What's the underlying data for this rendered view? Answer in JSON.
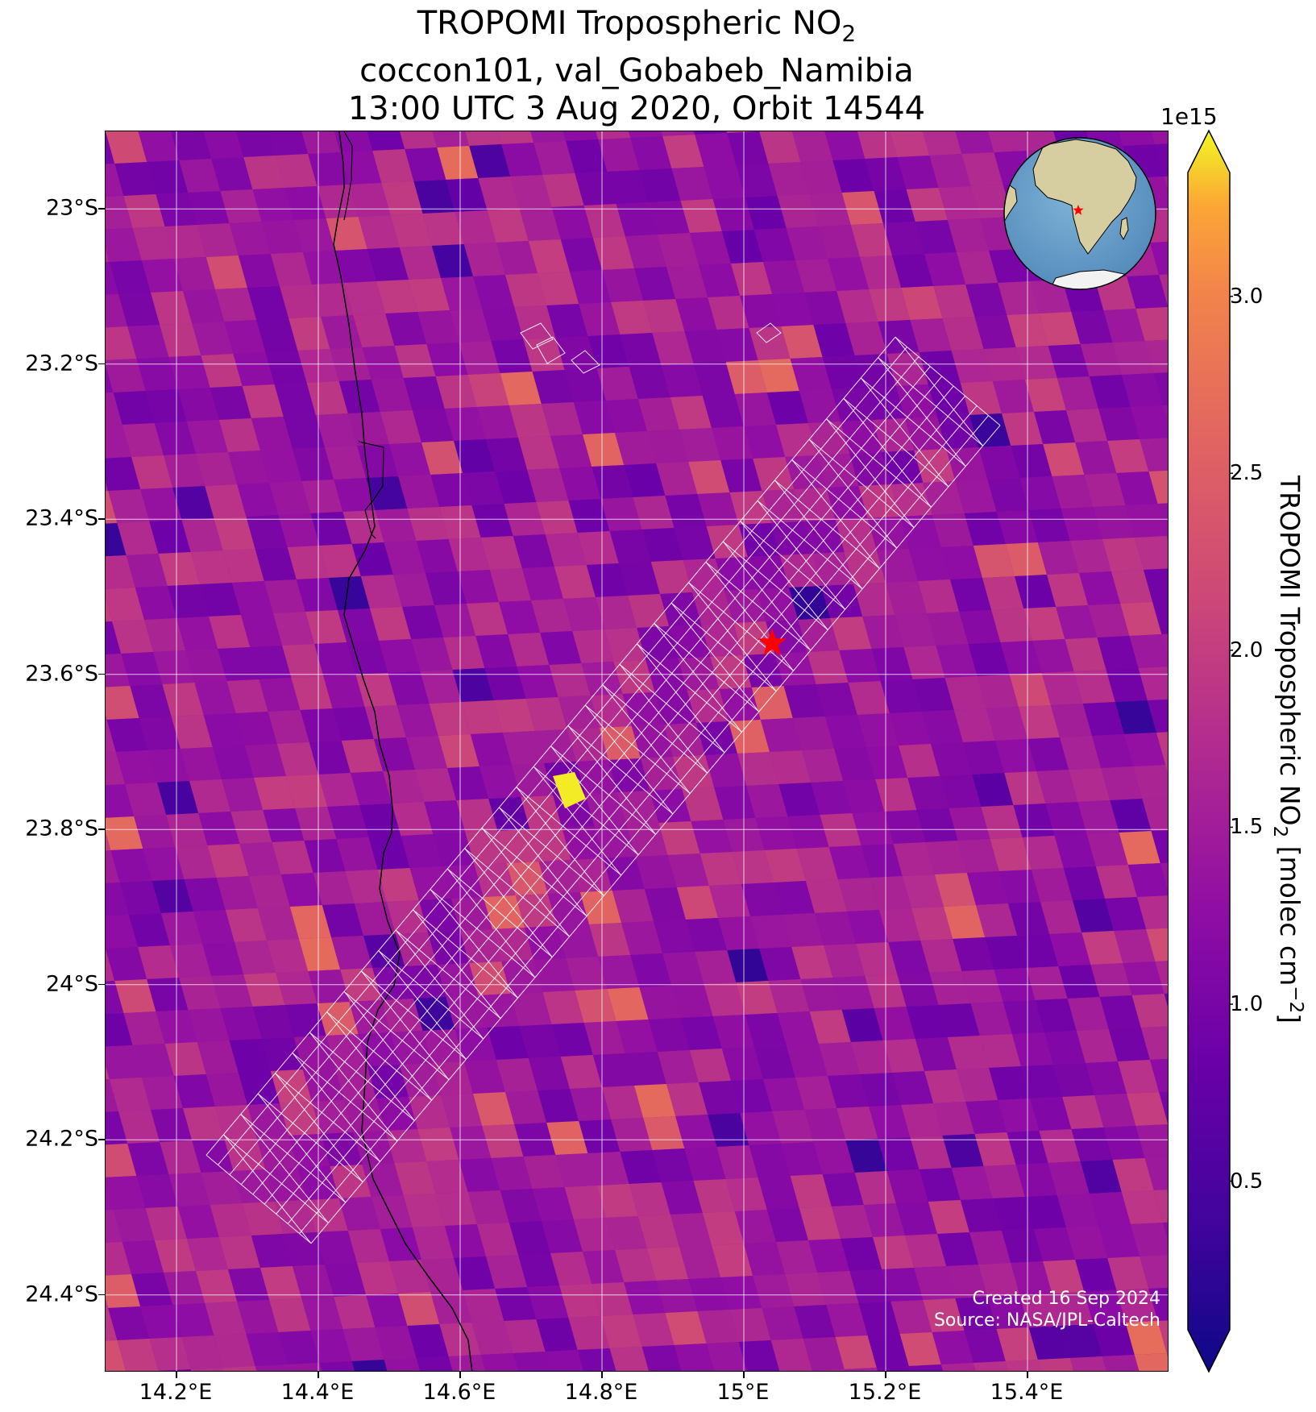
{
  "title": {
    "line1_prefix": "TROPOMI Tropospheric NO",
    "line1_sub": "2",
    "line2": "coccon101, val_Gobabeb_Namibia",
    "line3": "13:00 UTC 3 Aug 2020, Orbit 14544"
  },
  "map": {
    "lon_range": [
      14.1,
      15.6
    ],
    "lat_range": [
      -24.5,
      -22.9
    ],
    "x_ticks": [
      {
        "value": 14.2,
        "label": "14.2°E"
      },
      {
        "value": 14.4,
        "label": "14.4°E"
      },
      {
        "value": 14.6,
        "label": "14.6°E"
      },
      {
        "value": 14.8,
        "label": "14.8°E"
      },
      {
        "value": 15.0,
        "label": "15°E"
      },
      {
        "value": 15.2,
        "label": "15.2°E"
      },
      {
        "value": 15.4,
        "label": "15.4°E"
      }
    ],
    "y_ticks": [
      {
        "value": -23.0,
        "label": "23°S"
      },
      {
        "value": -23.2,
        "label": "23.2°S"
      },
      {
        "value": -23.4,
        "label": "23.4°S"
      },
      {
        "value": -23.6,
        "label": "23.6°S"
      },
      {
        "value": -23.8,
        "label": "23.8°S"
      },
      {
        "value": -24.0,
        "label": "24°S"
      },
      {
        "value": -24.2,
        "label": "24.2°S"
      },
      {
        "value": -24.4,
        "label": "24.4°S"
      }
    ],
    "site_marker": {
      "lon": 15.04,
      "lat": -23.56,
      "color": "#ff0000"
    },
    "grid_on": true,
    "colormap": "plasma"
  },
  "colorbar": {
    "exponent_label": "1e15",
    "label_prefix": "TROPOMI Tropospheric NO",
    "label_sub": "2",
    "label_middle": " [molec cm",
    "label_sup": "−2",
    "label_suffix": "]",
    "range": [
      0.08,
      3.35
    ],
    "extend": "both",
    "ticks": [
      {
        "value": 0.5,
        "label": "0.5"
      },
      {
        "value": 1.0,
        "label": "1.0"
      },
      {
        "value": 1.5,
        "label": "1.5"
      },
      {
        "value": 2.0,
        "label": "2.0"
      },
      {
        "value": 2.5,
        "label": "2.5"
      },
      {
        "value": 3.0,
        "label": "3.0"
      }
    ]
  },
  "credit": {
    "line1": "Created 16 Sep 2024",
    "line2": "Source: NASA/JPL-Caltech"
  },
  "colors": {
    "plasma_low": "#0d0887",
    "plasma_mid": "#cc4778",
    "plasma_high": "#f0f921",
    "footprint_outline": "#ffffff",
    "coastline": "#000000",
    "ocean": "#5f98c4",
    "land": "#d8cfa0"
  }
}
